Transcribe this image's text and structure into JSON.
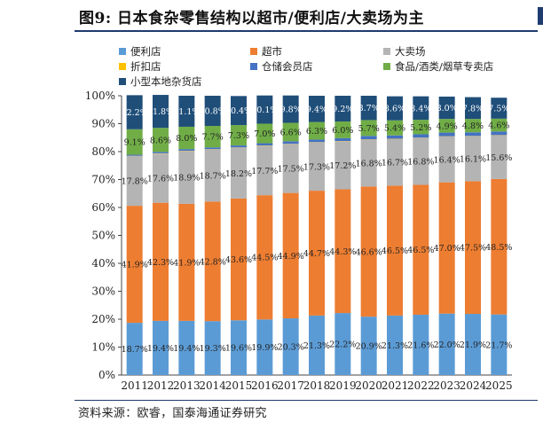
{
  "title": "图9:  日本食杂零售结构以超市/便利店/大卖场为主",
  "source": "资料来源：欧睿，国泰海通证券研究",
  "chart_data": {
    "type": "bar",
    "stacked": true,
    "categories": [
      "2011",
      "2012",
      "2013",
      "2014",
      "2015",
      "2016",
      "2017",
      "2018",
      "2019",
      "2020",
      "2021",
      "2022",
      "2023",
      "2024",
      "2025"
    ],
    "ylim": [
      0,
      100
    ],
    "yticks": [
      "0%",
      "10%",
      "20%",
      "30%",
      "40%",
      "50%",
      "60%",
      "70%",
      "80%",
      "90%",
      "100%"
    ],
    "legend_position": "top",
    "series": [
      {
        "name": "便利店",
        "color": "#5b9bd5",
        "values": [
          18.7,
          19.4,
          19.4,
          19.3,
          19.6,
          19.9,
          20.3,
          21.3,
          22.2,
          20.9,
          21.3,
          21.6,
          22.0,
          21.9,
          21.7
        ],
        "labels": [
          "18.7%",
          "19.4%",
          "19.4%",
          "19.3%",
          "19.6%",
          "19.9%",
          "20.3%",
          "21.3%",
          "22.2%",
          "20.9%",
          "21.3%",
          "21.6%",
          "22.0%",
          "21.9%",
          "21.7%"
        ]
      },
      {
        "name": "超市",
        "color": "#ed7d31",
        "values": [
          41.9,
          42.3,
          41.9,
          42.8,
          43.6,
          44.5,
          44.9,
          44.7,
          44.3,
          46.6,
          46.5,
          46.5,
          47.0,
          47.5,
          48.5
        ],
        "labels": [
          "41.9%",
          "42.3%",
          "41.9%",
          "42.8%",
          "43.6%",
          "44.5%",
          "44.9%",
          "44.7%",
          "44.3%",
          "46.6%",
          "46.5%",
          "46.5%",
          "47.0%",
          "47.5%",
          "48.5%"
        ]
      },
      {
        "name": "大卖场",
        "color": "#b4b4b4",
        "values": [
          17.8,
          17.6,
          18.9,
          18.7,
          18.2,
          17.7,
          17.5,
          17.3,
          17.2,
          16.8,
          16.7,
          16.8,
          16.4,
          16.1,
          15.6
        ],
        "labels": [
          "17.8%",
          "17.6%",
          "18.9%",
          "18.7%",
          "18.2%",
          "17.7%",
          "17.5%",
          "17.3%",
          "17.2%",
          "16.8%",
          "16.7%",
          "16.8%",
          "16.4%",
          "16.1%",
          "15.6%"
        ]
      },
      {
        "name": "折扣店",
        "color": "#ffc000",
        "values": [
          0.1,
          0.1,
          0.1,
          0.1,
          0.1,
          0.1,
          0.1,
          0.1,
          0.1,
          0.1,
          0.1,
          0.1,
          0.1,
          0.1,
          0.1
        ],
        "labels": []
      },
      {
        "name": "仓储会员店",
        "color": "#4472c4",
        "values": [
          0.4,
          0.5,
          0.6,
          0.6,
          0.7,
          0.8,
          0.9,
          0.9,
          1.0,
          1.2,
          1.2,
          1.2,
          1.3,
          1.3,
          1.3
        ],
        "labels": []
      },
      {
        "name": "食品/酒类/烟草专卖店",
        "color": "#70ad47",
        "values": [
          9.1,
          8.6,
          8.0,
          7.7,
          7.3,
          7.0,
          6.6,
          6.3,
          6.0,
          5.7,
          5.4,
          5.2,
          4.9,
          4.8,
          4.6
        ],
        "labels": [
          "9.1%",
          "8.6%",
          "8.0%",
          "7.7%",
          "7.3%",
          "7.0%",
          "6.6%",
          "6.3%",
          "6.0%",
          "5.7%",
          "5.4%",
          "5.2%",
          "4.9%",
          "4.8%",
          "4.6%"
        ]
      },
      {
        "name": "小型本地杂货店",
        "color": "#1f4e79",
        "values": [
          12.2,
          11.8,
          11.1,
          10.8,
          10.4,
          10.1,
          9.8,
          9.4,
          9.2,
          8.7,
          8.6,
          8.4,
          8.0,
          7.8,
          7.5
        ],
        "labels": [
          "12.2%",
          "11.8%",
          "11.1%",
          "10.8%",
          "10.4%",
          "10.1%",
          "9.8%",
          "9.4%",
          "9.2%",
          "8.7%",
          "8.6%",
          "8.4%",
          "8.0%",
          "7.8%",
          "7.5%"
        ]
      }
    ]
  }
}
